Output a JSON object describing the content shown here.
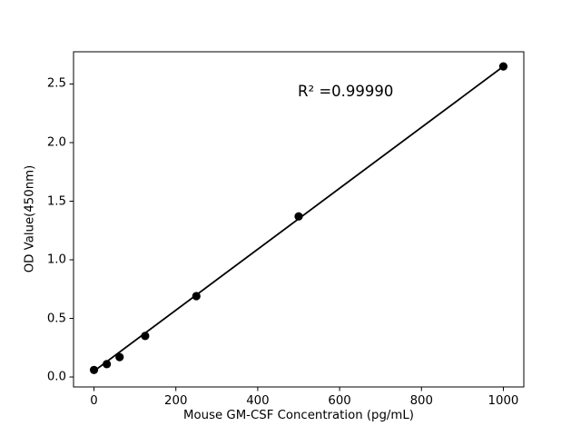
{
  "figure": {
    "background": "#ffffff",
    "foreground": "#000000"
  },
  "chart_data": {
    "type": "scatter",
    "title": "",
    "xlabel": "Mouse GM-CSF Concentration (pg/mL)",
    "ylabel": "OD Value(450nm)",
    "annotation": {
      "text": "R² =0.99990"
    },
    "r_squared": 0.9999,
    "x": [
      0,
      31.25,
      62.5,
      125,
      250,
      500,
      1000
    ],
    "y": [
      0.06,
      0.11,
      0.17,
      0.35,
      0.69,
      1.37,
      2.65
    ],
    "trendline": {
      "x": [
        0,
        1000
      ],
      "y": [
        0.05,
        2.65
      ]
    },
    "x_ticks": [
      "0",
      "200",
      "400",
      "600",
      "800",
      "1000"
    ],
    "y_ticks": [
      "0.0",
      "0.5",
      "1.0",
      "1.5",
      "2.0",
      "2.5"
    ],
    "xlim": [
      -50,
      1050
    ],
    "ylim": [
      -0.085,
      2.775
    ],
    "grid": false,
    "legend": "none",
    "marker_color": "#000000",
    "line_color": "#000000",
    "spine_color": "#000000"
  }
}
